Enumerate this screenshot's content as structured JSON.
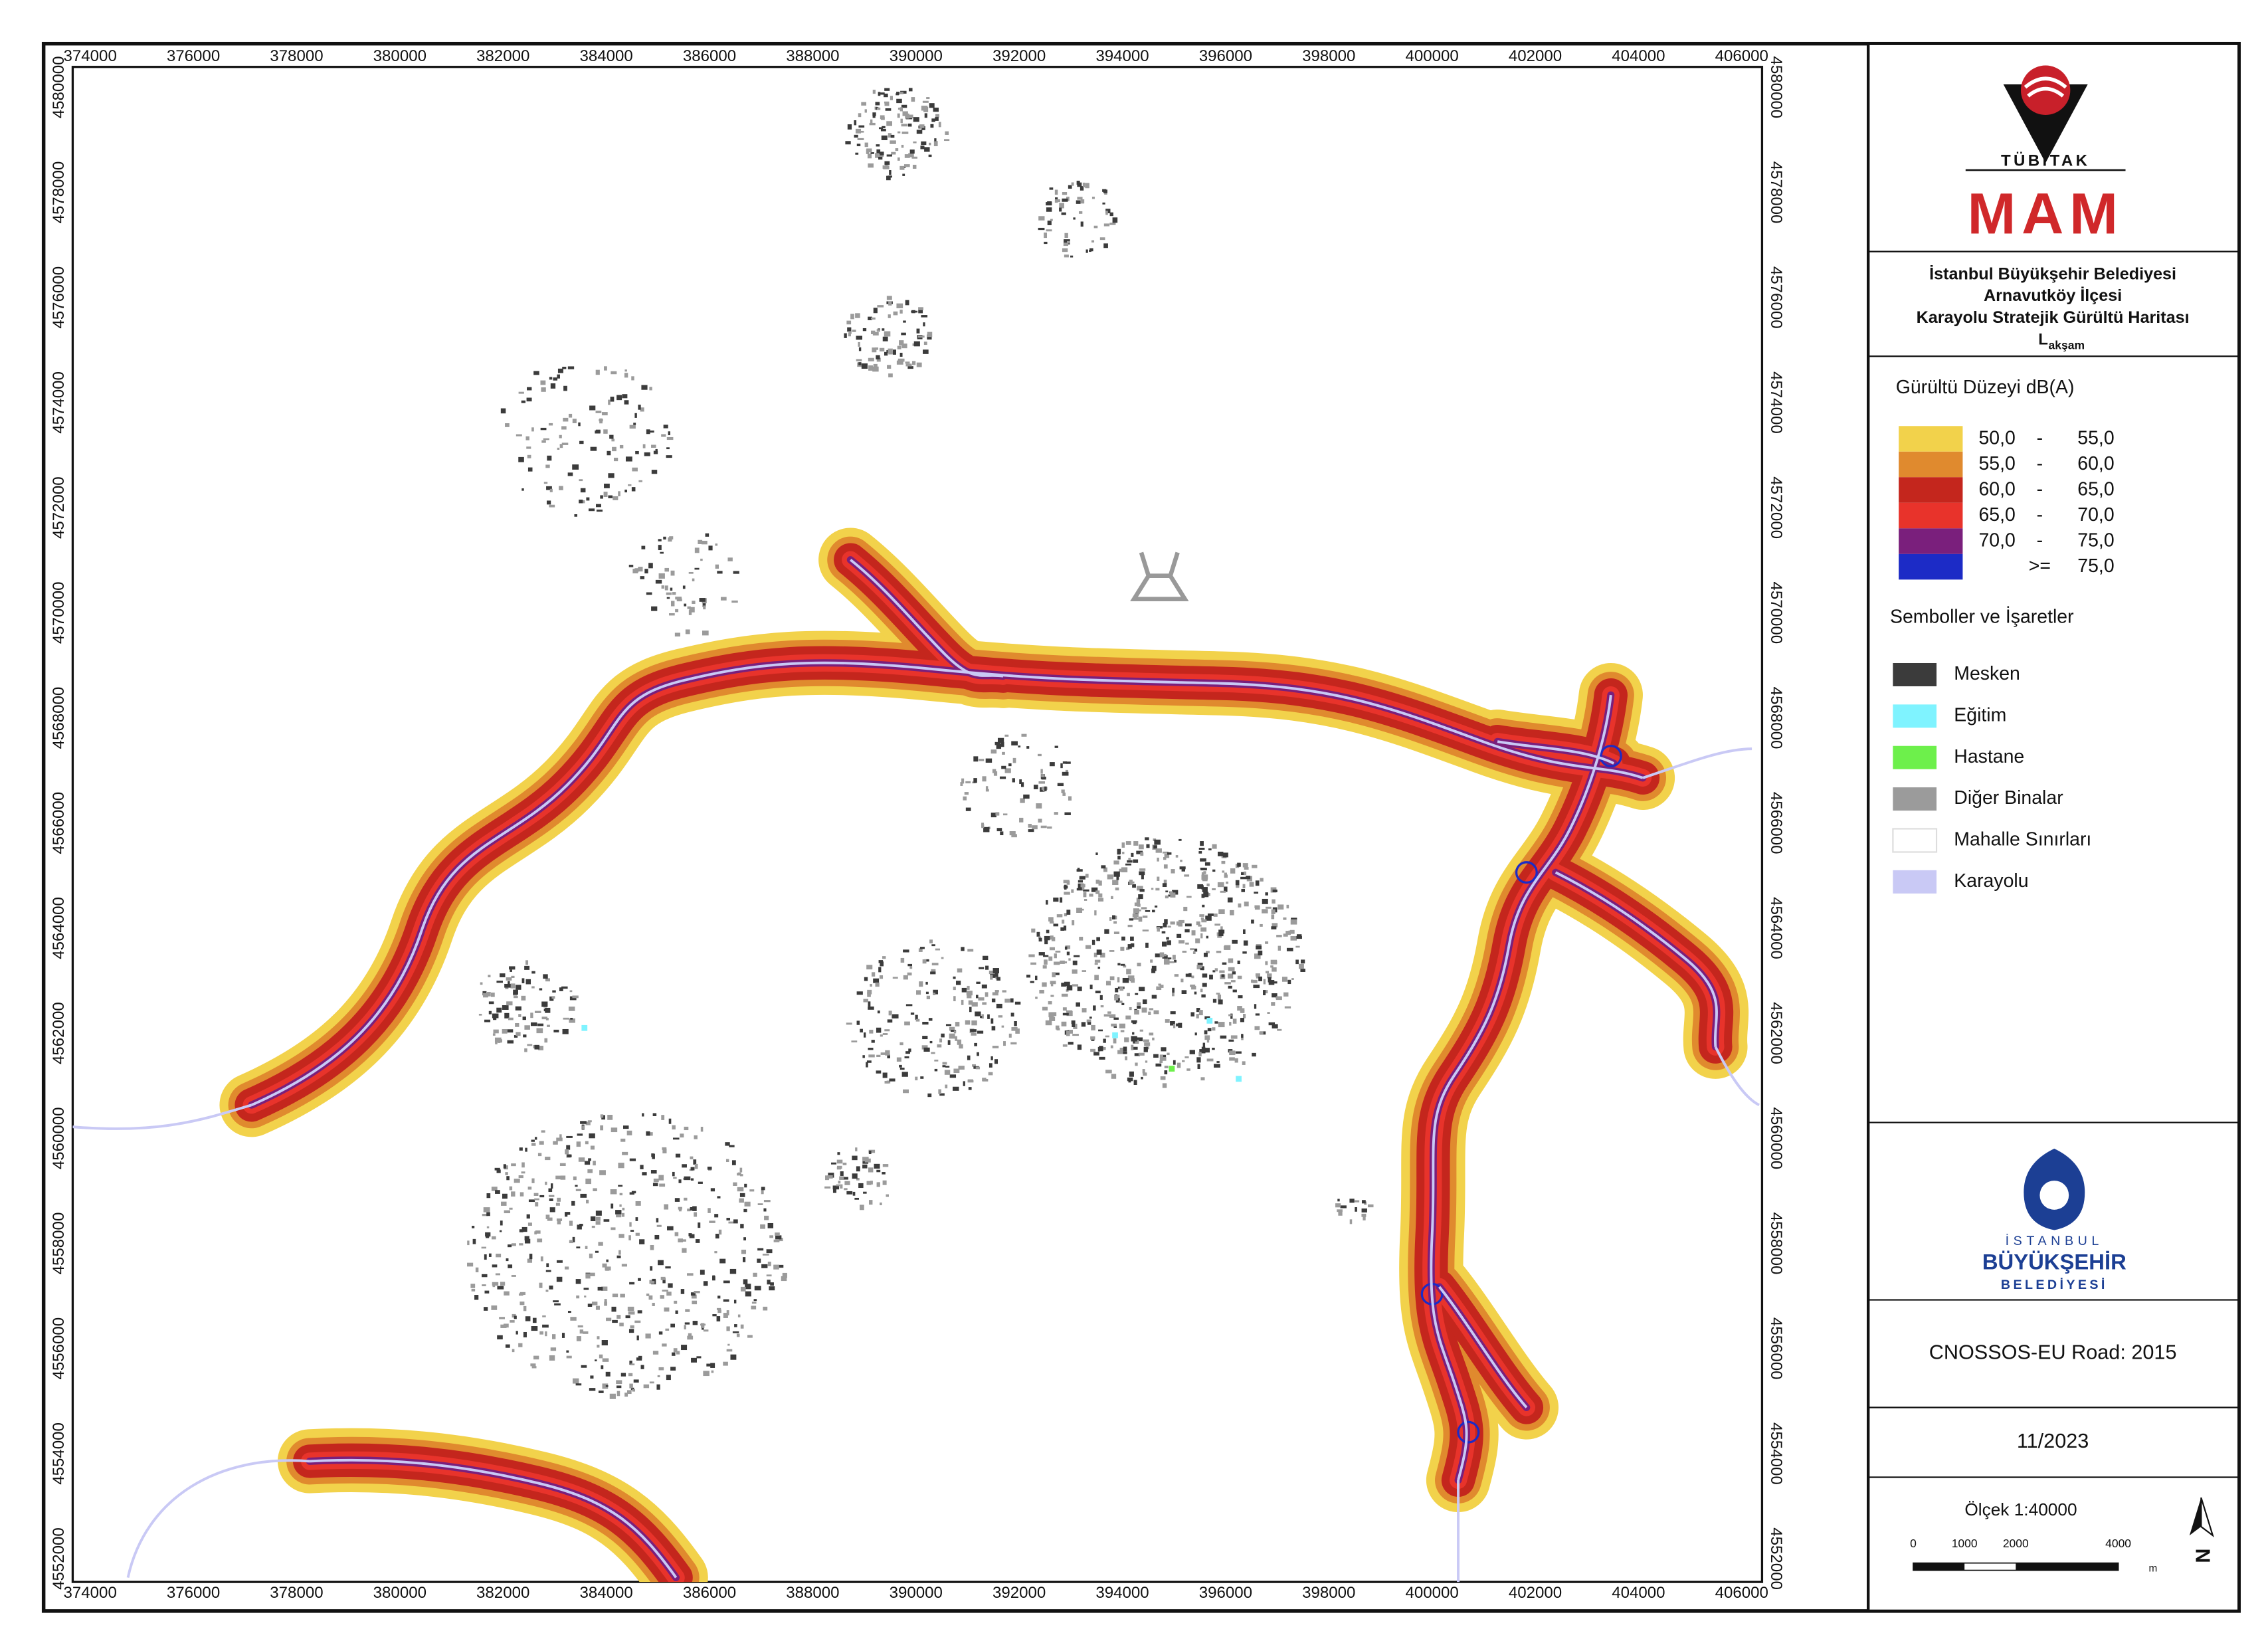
{
  "map": {
    "x_ticks": [
      374000,
      376000,
      378000,
      380000,
      382000,
      384000,
      386000,
      388000,
      390000,
      392000,
      394000,
      396000,
      398000,
      400000,
      402000,
      404000,
      406000
    ],
    "y_ticks": [
      4580000,
      4578000,
      4576000,
      4574000,
      4572000,
      4570000,
      4568000,
      4566000,
      4564000,
      4562000,
      4560000,
      4558000,
      4556000,
      4554000,
      4552000
    ]
  },
  "header": {
    "brand": "TÜBİTAK",
    "unit": "MAM",
    "lines": [
      "İstanbul Büyükşehir Belediyesi",
      "Arnavutköy İlçesi",
      "Karayolu Stratejik Gürültü Haritası"
    ],
    "indicator": "L",
    "indicator_sub": "akşam"
  },
  "legend": {
    "title": "Gürültü Düzeyi dB(A)",
    "classes": [
      {
        "from": "50,0",
        "sep": "-",
        "to": "55,0",
        "color": "#f2d24b"
      },
      {
        "from": "55,0",
        "sep": "-",
        "to": "60,0",
        "color": "#e08a2e"
      },
      {
        "from": "60,0",
        "sep": "-",
        "to": "65,0",
        "color": "#c4261d"
      },
      {
        "from": "65,0",
        "sep": "-",
        "to": "70,0",
        "color": "#e8332b"
      },
      {
        "from": "70,0",
        "sep": "-",
        "to": "75,0",
        "color": "#7a1f7c"
      },
      {
        "sep": ">=",
        "to": "75,0",
        "color": "#1c2bc6"
      }
    ]
  },
  "symbols": {
    "title": "Semboller ve İşaretler",
    "items": [
      {
        "label": "Mesken",
        "color": "#3b3b3b"
      },
      {
        "label": "Eğitim",
        "color": "#7ff3ff"
      },
      {
        "label": "Hastane",
        "color": "#6df04b"
      },
      {
        "label": "Diğer Binalar",
        "color": "#9b9b9b"
      },
      {
        "label": "Mahalle Sınırları",
        "color": "#ffffff"
      },
      {
        "label": "Karayolu",
        "color": "#c9c9f5"
      }
    ]
  },
  "logo": {
    "lines": [
      "İSTANBUL",
      "BÜYÜKŞEHİR",
      "BELEDİYESİ"
    ]
  },
  "model": "CNOSSOS-EU Road: 2015",
  "date": "11/2023",
  "scale": {
    "title": "Ölçek 1:40000",
    "labels": [
      0,
      1000,
      2000,
      4000
    ],
    "unit": "m"
  },
  "north": "N"
}
